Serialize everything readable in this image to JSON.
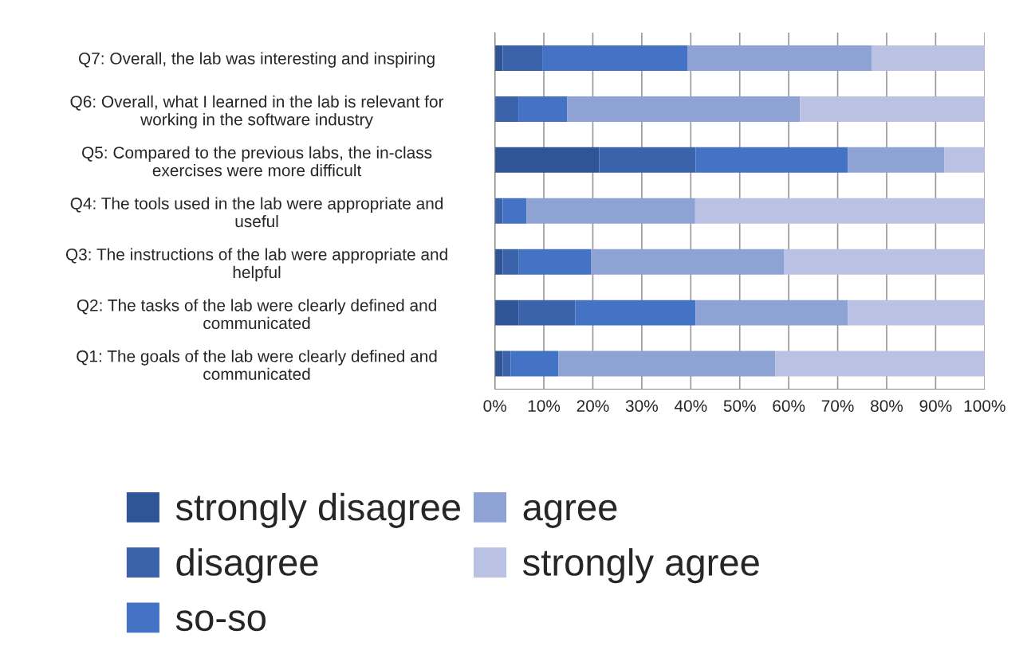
{
  "chart_data": {
    "type": "bar",
    "orientation": "horizontal",
    "stacked": true,
    "categories": [
      "Q7: Overall, the lab was interesting and inspiring",
      "Q6: Overall, what I learned in the lab is relevant for\nworking in the software industry",
      "Q5: Compared to the previous labs, the in-class\nexercises were more difficult",
      "Q4: The tools used in the lab were appropriate and\nuseful",
      "Q3: The instructions of the lab were appropriate and\nhelpful",
      "Q2: The tasks of the lab were clearly defined and\ncommunicated",
      "Q1: The goals of the lab were clearly defined and\ncommunicated"
    ],
    "series": [
      {
        "name": "strongly disagree",
        "color": "#2f5597",
        "values": [
          1.6,
          0,
          21.3,
          0,
          1.6,
          4.9,
          1.6
        ]
      },
      {
        "name": "disagree",
        "color": "#3a63ac",
        "values": [
          8.2,
          4.8,
          19.7,
          1.6,
          3.3,
          11.5,
          1.6
        ]
      },
      {
        "name": "so-so",
        "color": "#4472c4",
        "values": [
          29.5,
          10.0,
          31.1,
          4.9,
          14.8,
          24.6,
          9.8
        ]
      },
      {
        "name": "agree",
        "color": "#8fa2d4",
        "values": [
          37.7,
          47.5,
          19.7,
          34.4,
          39.3,
          31.1,
          44.3
        ]
      },
      {
        "name": "strongly agree",
        "color": "#b9c2e2",
        "values": [
          23.0,
          37.7,
          8.2,
          59.0,
          41.0,
          27.9,
          42.6
        ]
      }
    ],
    "xlim": [
      0,
      100
    ],
    "xticks": [
      {
        "value": 0,
        "label": "0%"
      },
      {
        "value": 10,
        "label": "10%"
      },
      {
        "value": 20,
        "label": "20%"
      },
      {
        "value": 30,
        "label": "30%"
      },
      {
        "value": 40,
        "label": "40%"
      },
      {
        "value": 50,
        "label": "50%"
      },
      {
        "value": 60,
        "label": "60%"
      },
      {
        "value": 70,
        "label": "70%"
      },
      {
        "value": 80,
        "label": "80%"
      },
      {
        "value": 90,
        "label": "90%"
      },
      {
        "value": 100,
        "label": "100%"
      }
    ],
    "grid": "x",
    "legend": "bottom"
  }
}
